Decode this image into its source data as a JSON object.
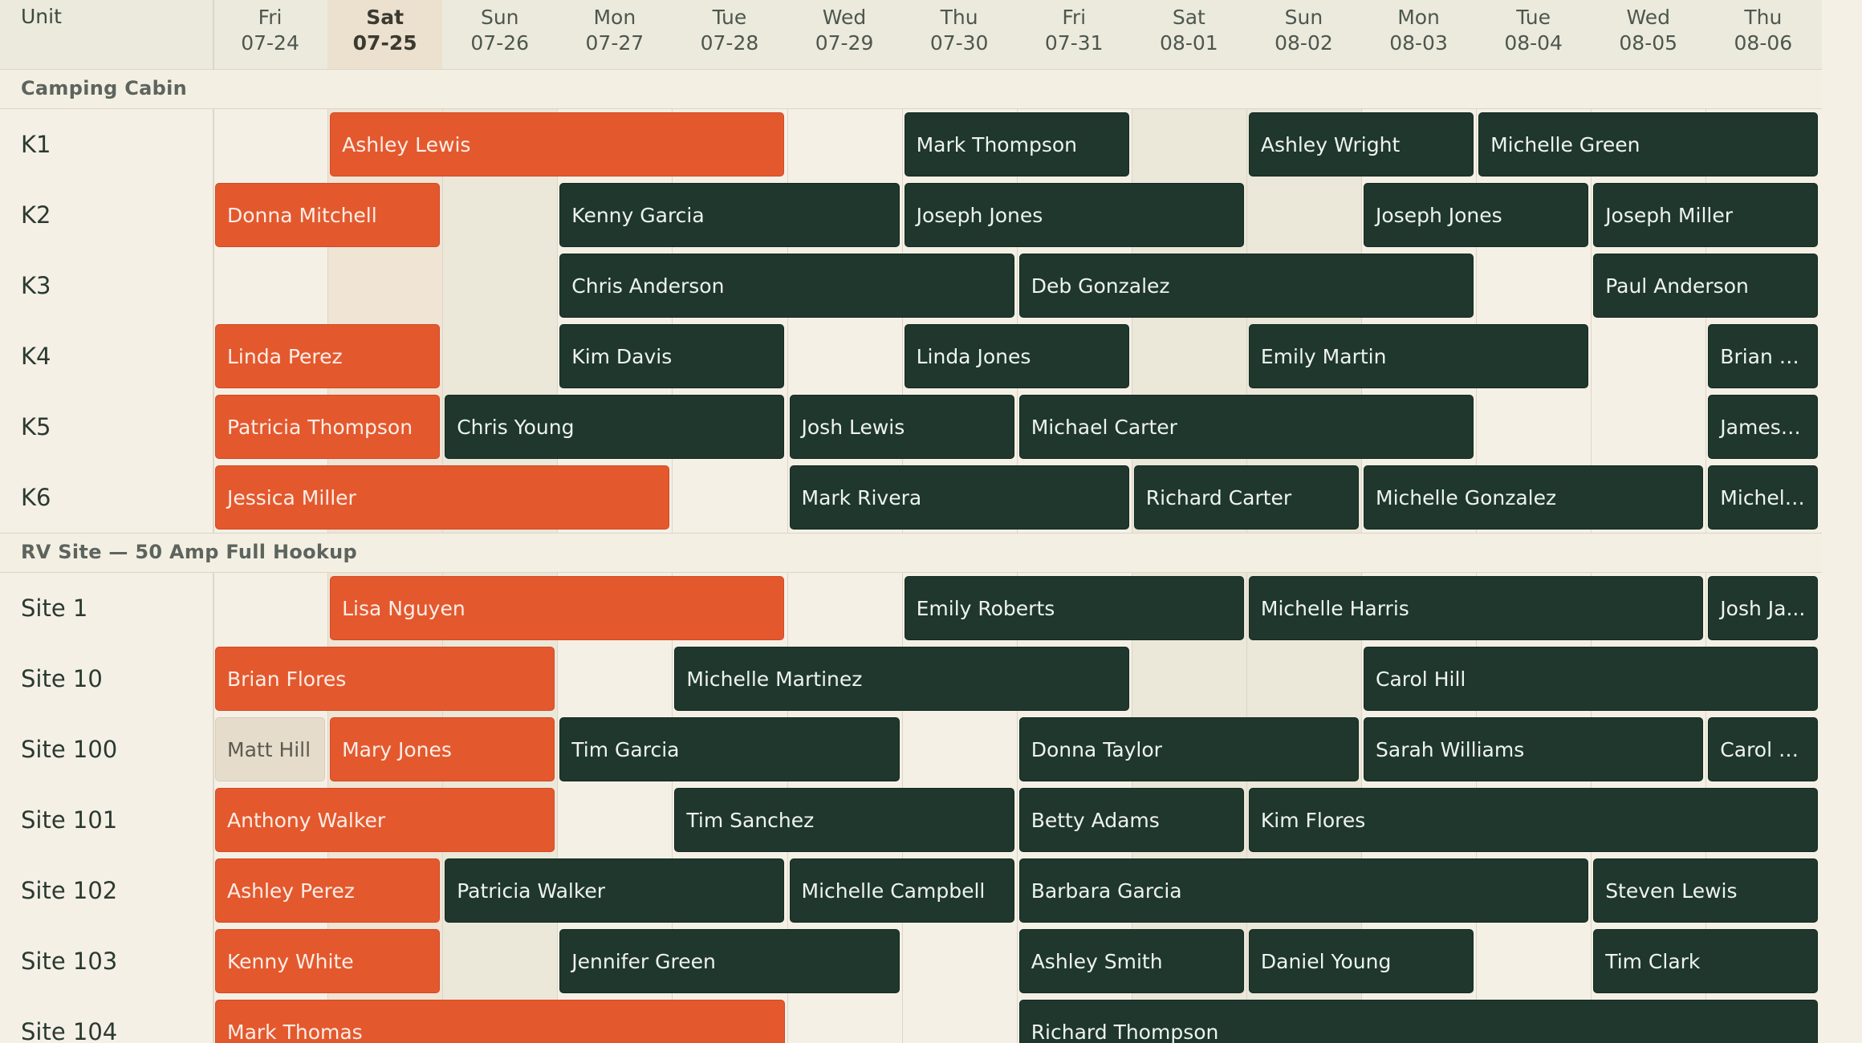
{
  "header": {
    "unit_label": "Unit"
  },
  "days": [
    {
      "dow": "Fri",
      "date": "07-24",
      "weekend": false,
      "today": false
    },
    {
      "dow": "Sat",
      "date": "07-25",
      "weekend": true,
      "today": true
    },
    {
      "dow": "Sun",
      "date": "07-26",
      "weekend": true,
      "today": false
    },
    {
      "dow": "Mon",
      "date": "07-27",
      "weekend": false,
      "today": false
    },
    {
      "dow": "Tue",
      "date": "07-28",
      "weekend": false,
      "today": false
    },
    {
      "dow": "Wed",
      "date": "07-29",
      "weekend": false,
      "today": false
    },
    {
      "dow": "Thu",
      "date": "07-30",
      "weekend": false,
      "today": false
    },
    {
      "dow": "Fri",
      "date": "07-31",
      "weekend": false,
      "today": false
    },
    {
      "dow": "Sat",
      "date": "08-01",
      "weekend": true,
      "today": false
    },
    {
      "dow": "Sun",
      "date": "08-02",
      "weekend": true,
      "today": false
    },
    {
      "dow": "Mon",
      "date": "08-03",
      "weekend": false,
      "today": false
    },
    {
      "dow": "Tue",
      "date": "08-04",
      "weekend": false,
      "today": false
    },
    {
      "dow": "Wed",
      "date": "08-05",
      "weekend": false,
      "today": false
    },
    {
      "dow": "Thu",
      "date": "08-06",
      "weekend": false,
      "today": false
    }
  ],
  "colors": {
    "active": "#e4582e",
    "confirmed": "#1f372c",
    "pending": "#e6dccb"
  },
  "groups": [
    {
      "name": "Camping Cabin",
      "units": [
        {
          "name": "K1",
          "bookings": [
            {
              "guest": "Ashley Lewis",
              "start": 1,
              "nights": 4,
              "status": "active"
            },
            {
              "guest": "Mark Thompson",
              "start": 6,
              "nights": 2,
              "status": "confirmed"
            },
            {
              "guest": "Ashley Wright",
              "start": 9,
              "nights": 2,
              "status": "confirmed"
            },
            {
              "guest": "Michelle Green",
              "start": 11,
              "nights": 3,
              "status": "confirmed"
            }
          ]
        },
        {
          "name": "K2",
          "bookings": [
            {
              "guest": "Donna Mitchell",
              "start": 0,
              "nights": 2,
              "status": "active"
            },
            {
              "guest": "Kenny Garcia",
              "start": 3,
              "nights": 3,
              "status": "confirmed"
            },
            {
              "guest": "Joseph Jones",
              "start": 6,
              "nights": 3,
              "status": "confirmed"
            },
            {
              "guest": "Joseph Jones",
              "start": 10,
              "nights": 2,
              "status": "confirmed"
            },
            {
              "guest": "Joseph Miller",
              "start": 12,
              "nights": 2,
              "status": "confirmed"
            }
          ]
        },
        {
          "name": "K3",
          "bookings": [
            {
              "guest": "Chris Anderson",
              "start": 3,
              "nights": 4,
              "status": "confirmed"
            },
            {
              "guest": "Deb Gonzalez",
              "start": 7,
              "nights": 4,
              "status": "confirmed"
            },
            {
              "guest": "Paul Anderson",
              "start": 12,
              "nights": 2,
              "status": "confirmed"
            }
          ]
        },
        {
          "name": "K4",
          "bookings": [
            {
              "guest": "Linda Perez",
              "start": 0,
              "nights": 2,
              "status": "active"
            },
            {
              "guest": "Kim Davis",
              "start": 3,
              "nights": 2,
              "status": "confirmed"
            },
            {
              "guest": "Linda Jones",
              "start": 6,
              "nights": 2,
              "status": "confirmed"
            },
            {
              "guest": "Emily Martin",
              "start": 9,
              "nights": 3,
              "status": "confirmed"
            },
            {
              "guest": "Brian S...",
              "start": 13,
              "nights": 1,
              "status": "confirmed"
            }
          ]
        },
        {
          "name": "K5",
          "bookings": [
            {
              "guest": "Patricia Thompson",
              "start": 0,
              "nights": 2,
              "status": "active"
            },
            {
              "guest": "Chris Young",
              "start": 2,
              "nights": 3,
              "status": "confirmed"
            },
            {
              "guest": "Josh Lewis",
              "start": 5,
              "nights": 2,
              "status": "confirmed"
            },
            {
              "guest": "Michael Carter",
              "start": 7,
              "nights": 4,
              "status": "confirmed"
            },
            {
              "guest": "James ...",
              "start": 13,
              "nights": 1,
              "status": "confirmed"
            }
          ]
        },
        {
          "name": "K6",
          "bookings": [
            {
              "guest": "Jessica Miller",
              "start": 0,
              "nights": 4,
              "status": "active"
            },
            {
              "guest": "Mark Rivera",
              "start": 5,
              "nights": 3,
              "status": "confirmed"
            },
            {
              "guest": "Richard Carter",
              "start": 8,
              "nights": 2,
              "status": "confirmed"
            },
            {
              "guest": "Michelle Gonzalez",
              "start": 10,
              "nights": 3,
              "status": "confirmed"
            },
            {
              "guest": "Michell...",
              "start": 13,
              "nights": 1,
              "status": "confirmed"
            }
          ]
        }
      ]
    },
    {
      "name": "RV Site — 50 Amp Full Hookup",
      "units": [
        {
          "name": "Site 1",
          "bookings": [
            {
              "guest": "Lisa Nguyen",
              "start": 1,
              "nights": 4,
              "status": "active"
            },
            {
              "guest": "Emily Roberts",
              "start": 6,
              "nights": 3,
              "status": "confirmed"
            },
            {
              "guest": "Michelle Harris",
              "start": 9,
              "nights": 4,
              "status": "confirmed"
            },
            {
              "guest": "Josh Ja...",
              "start": 13,
              "nights": 1,
              "status": "confirmed"
            }
          ]
        },
        {
          "name": "Site 10",
          "bookings": [
            {
              "guest": "Brian Flores",
              "start": 0,
              "nights": 3,
              "status": "active"
            },
            {
              "guest": "Michelle Martinez",
              "start": 4,
              "nights": 4,
              "status": "confirmed"
            },
            {
              "guest": "Carol Hill",
              "start": 10,
              "nights": 4,
              "status": "confirmed"
            }
          ]
        },
        {
          "name": "Site 100",
          "bookings": [
            {
              "guest": "Matt Hill",
              "start": 0,
              "nights": 1,
              "status": "pending"
            },
            {
              "guest": "Mary Jones",
              "start": 1,
              "nights": 2,
              "status": "active"
            },
            {
              "guest": "Tim Garcia",
              "start": 3,
              "nights": 3,
              "status": "confirmed"
            },
            {
              "guest": "Donna Taylor",
              "start": 7,
              "nights": 3,
              "status": "confirmed"
            },
            {
              "guest": "Sarah Williams",
              "start": 10,
              "nights": 3,
              "status": "confirmed"
            },
            {
              "guest": "Carol T...",
              "start": 13,
              "nights": 1,
              "status": "confirmed"
            }
          ]
        },
        {
          "name": "Site 101",
          "bookings": [
            {
              "guest": "Anthony Walker",
              "start": 0,
              "nights": 3,
              "status": "active"
            },
            {
              "guest": "Tim Sanchez",
              "start": 4,
              "nights": 3,
              "status": "confirmed"
            },
            {
              "guest": "Betty Adams",
              "start": 7,
              "nights": 2,
              "status": "confirmed"
            },
            {
              "guest": "Kim Flores",
              "start": 9,
              "nights": 5,
              "status": "confirmed"
            }
          ]
        },
        {
          "name": "Site 102",
          "bookings": [
            {
              "guest": "Ashley Perez",
              "start": 0,
              "nights": 2,
              "status": "active"
            },
            {
              "guest": "Patricia Walker",
              "start": 2,
              "nights": 3,
              "status": "confirmed"
            },
            {
              "guest": "Michelle Campbell",
              "start": 5,
              "nights": 2,
              "status": "confirmed"
            },
            {
              "guest": "Barbara Garcia",
              "start": 7,
              "nights": 5,
              "status": "confirmed"
            },
            {
              "guest": "Steven Lewis",
              "start": 12,
              "nights": 2,
              "status": "confirmed"
            }
          ]
        },
        {
          "name": "Site 103",
          "bookings": [
            {
              "guest": "Kenny White",
              "start": 0,
              "nights": 2,
              "status": "active"
            },
            {
              "guest": "Jennifer Green",
              "start": 3,
              "nights": 3,
              "status": "confirmed"
            },
            {
              "guest": "Ashley Smith",
              "start": 7,
              "nights": 2,
              "status": "confirmed"
            },
            {
              "guest": "Daniel Young",
              "start": 9,
              "nights": 2,
              "status": "confirmed"
            },
            {
              "guest": "Tim Clark",
              "start": 12,
              "nights": 2,
              "status": "confirmed"
            }
          ]
        },
        {
          "name": "Site 104",
          "bookings": [
            {
              "guest": "Mark Thomas",
              "start": 0,
              "nights": 5,
              "status": "active"
            },
            {
              "guest": "Richard Thompson",
              "start": 7,
              "nights": 7,
              "status": "confirmed"
            }
          ]
        }
      ]
    }
  ]
}
